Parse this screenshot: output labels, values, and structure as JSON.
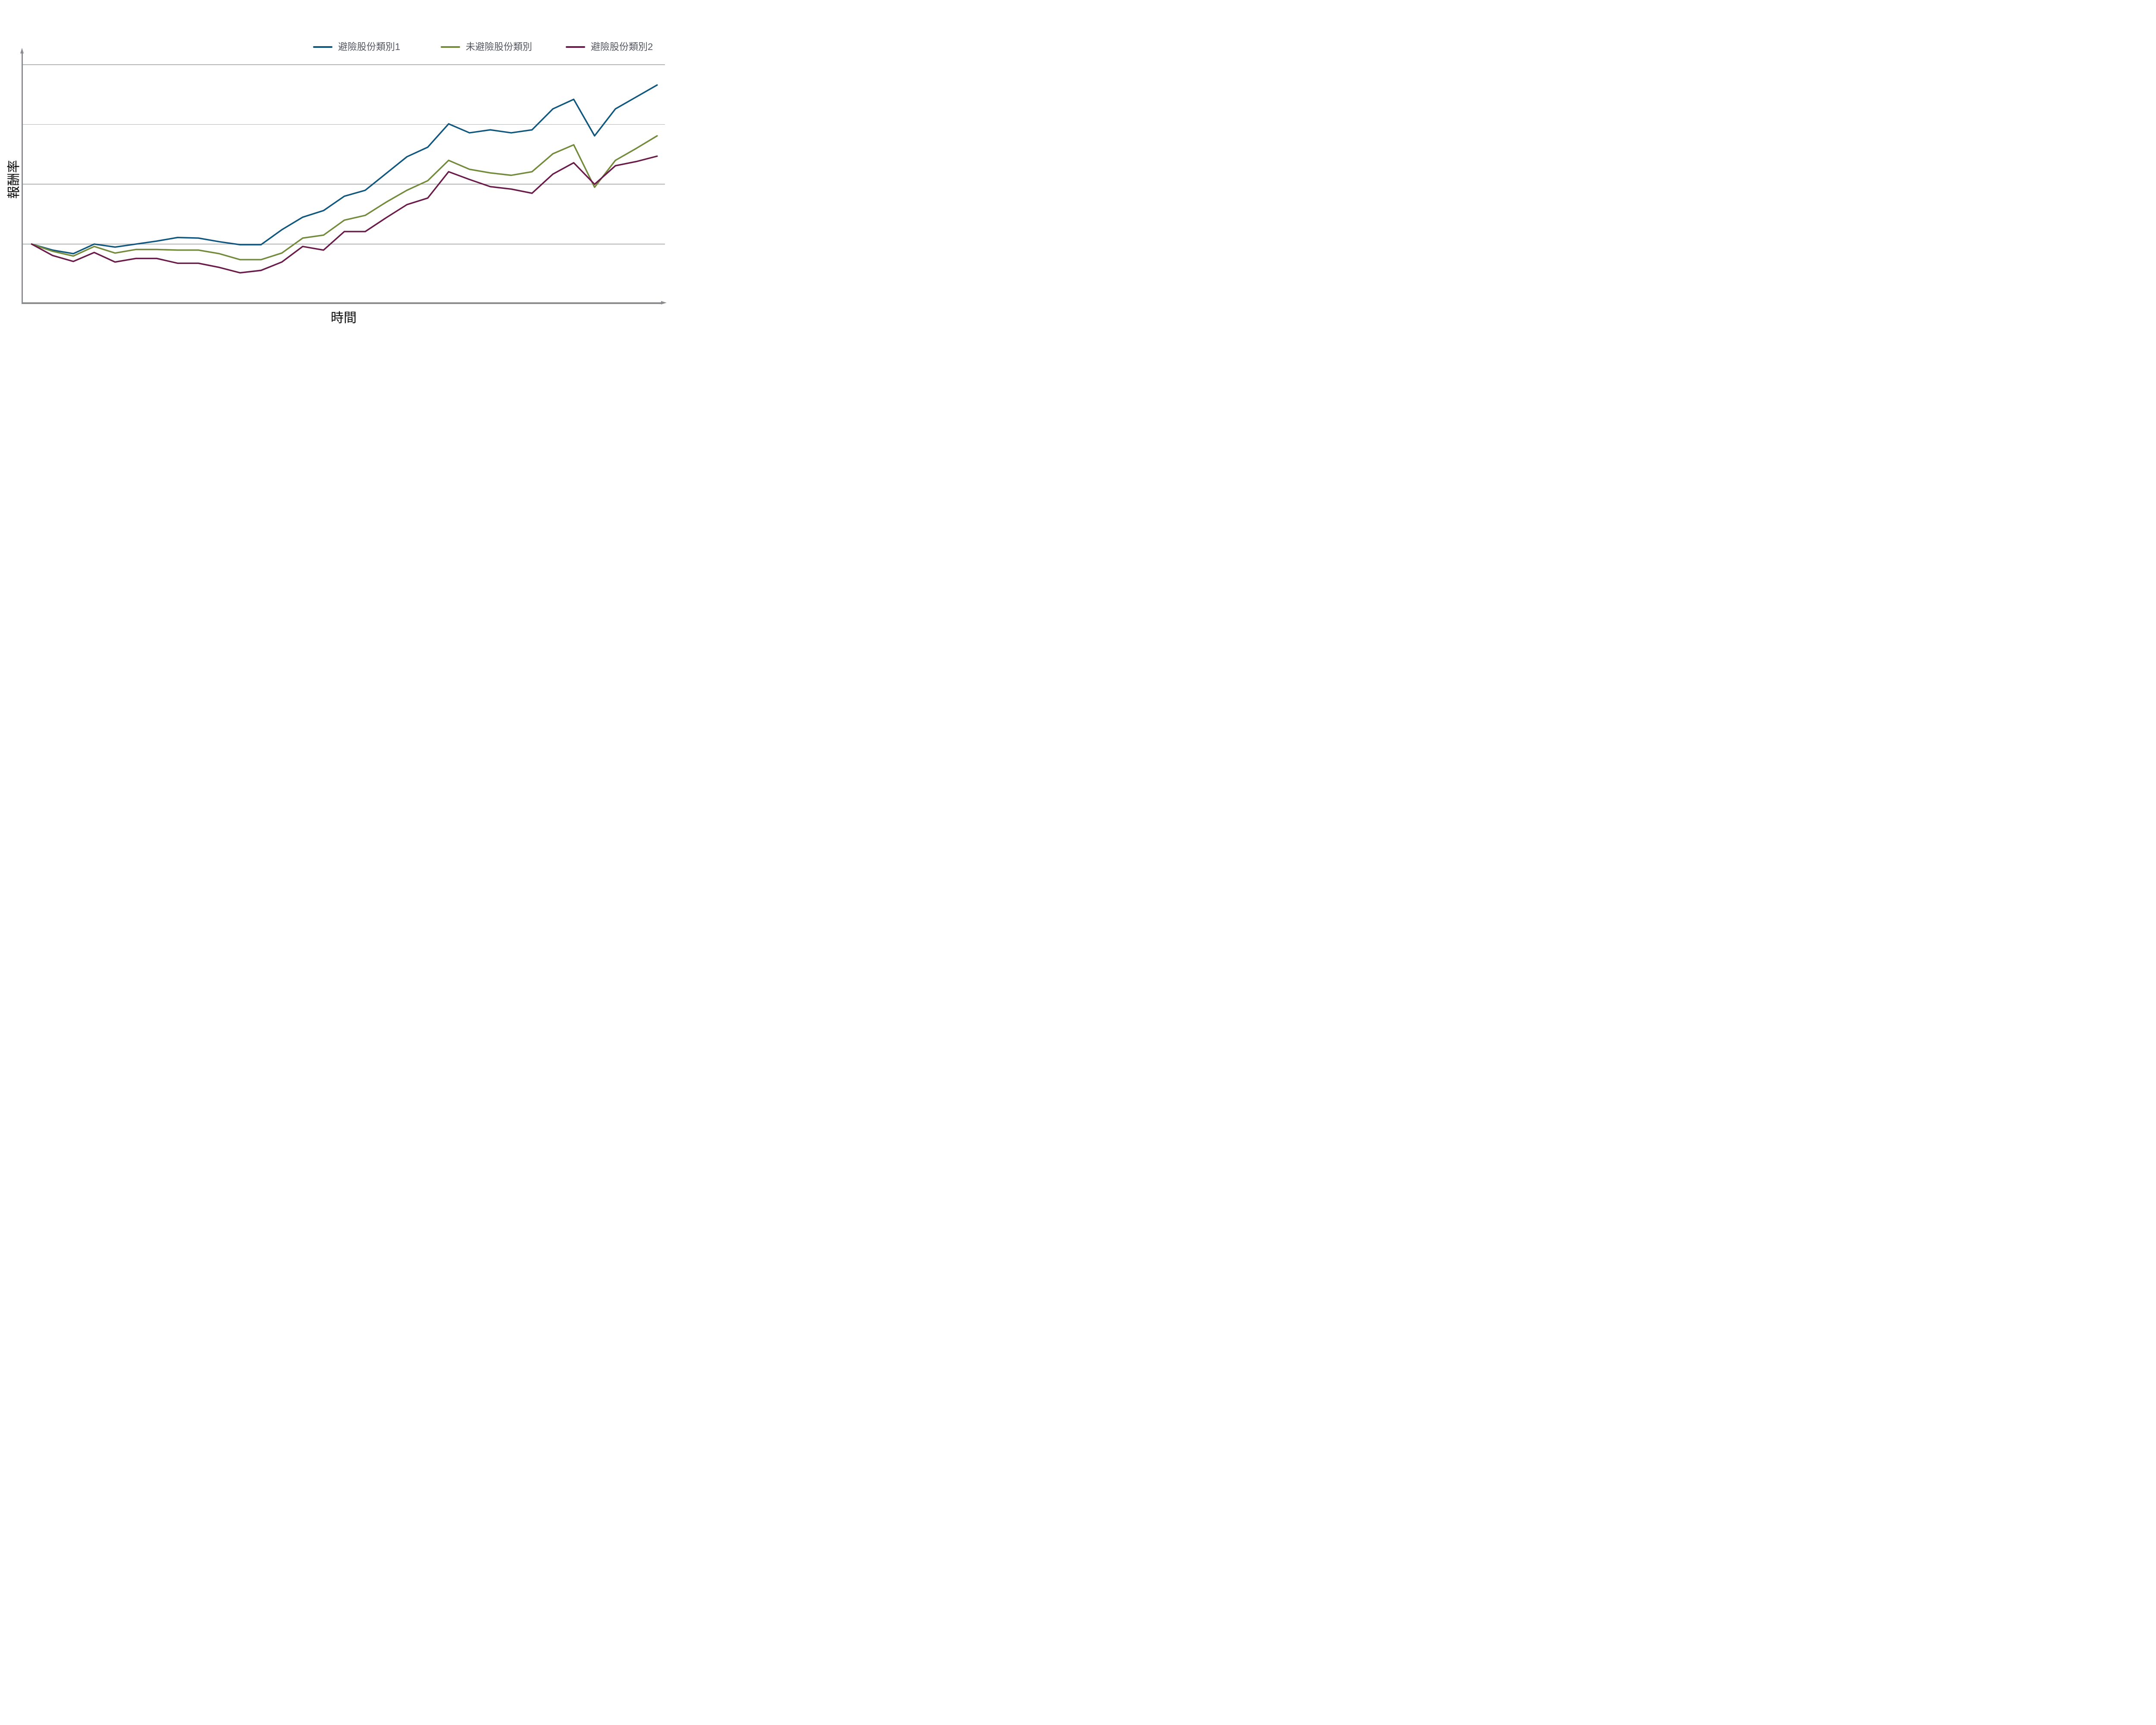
{
  "axes": {
    "y_title": "報酬率",
    "x_title": "時間",
    "axis_color": "#8a8c90",
    "gridline_color": "#b2b4b6",
    "title_text_color": "#0b0b0b",
    "legend_text_color": "#555862",
    "gridline_count": 4,
    "tick_labels": "none"
  },
  "legend": {
    "position": "top-right",
    "items": [
      {
        "label": "避險股份類別1",
        "color": "#11577d"
      },
      {
        "label": "未避險股份類別",
        "color": "#748a3d"
      },
      {
        "label": "避險股份類別2",
        "color": "#691c4a"
      }
    ]
  },
  "chart_data": {
    "type": "line",
    "title": "",
    "xlabel": "時間",
    "ylabel": "報酬率",
    "x": [
      0,
      1,
      2,
      3,
      4,
      5,
      6,
      7,
      8,
      9,
      10,
      11,
      12,
      13,
      14,
      15,
      16,
      17,
      18,
      19,
      20,
      21,
      22,
      23,
      24,
      25,
      26,
      27,
      28,
      29,
      30
    ],
    "x_tick_labels": "none (unlabeled time axis)",
    "y_tick_labels": "none (unlabeled return axis; values in gridline units, 0 = 4th gridline from top where all series start)",
    "ylim": [
      -1.0,
      3.15
    ],
    "gridlines_y": [
      0,
      1,
      2,
      3
    ],
    "legend_position": "top",
    "series": [
      {
        "name": "避險股份類別1",
        "color": "#11577d",
        "values": [
          0.0,
          -0.1,
          -0.16,
          0.0,
          -0.05,
          0.0,
          0.05,
          0.11,
          0.1,
          0.04,
          -0.01,
          -0.01,
          0.24,
          0.45,
          0.56,
          0.8,
          0.9,
          1.18,
          1.46,
          1.62,
          2.01,
          1.86,
          1.91,
          1.86,
          1.91,
          2.26,
          2.42,
          1.81,
          2.26,
          2.46,
          2.66
        ]
      },
      {
        "name": "未避險股份類別",
        "color": "#748a3d",
        "values": [
          0.0,
          -0.12,
          -0.2,
          -0.04,
          -0.15,
          -0.09,
          -0.09,
          -0.1,
          -0.1,
          -0.16,
          -0.26,
          -0.26,
          -0.15,
          0.1,
          0.15,
          0.4,
          0.48,
          0.7,
          0.9,
          1.06,
          1.4,
          1.25,
          1.19,
          1.15,
          1.21,
          1.51,
          1.66,
          0.95,
          1.4,
          1.6,
          1.81
        ]
      },
      {
        "name": "避險股份類別2",
        "color": "#691c4a",
        "values": [
          0.0,
          -0.19,
          -0.29,
          -0.14,
          -0.3,
          -0.24,
          -0.24,
          -0.32,
          -0.32,
          -0.39,
          -0.48,
          -0.44,
          -0.3,
          -0.04,
          -0.1,
          0.21,
          0.21,
          0.44,
          0.66,
          0.77,
          1.21,
          1.08,
          0.96,
          0.92,
          0.85,
          1.17,
          1.36,
          1.0,
          1.31,
          1.38,
          1.47
        ]
      }
    ]
  }
}
